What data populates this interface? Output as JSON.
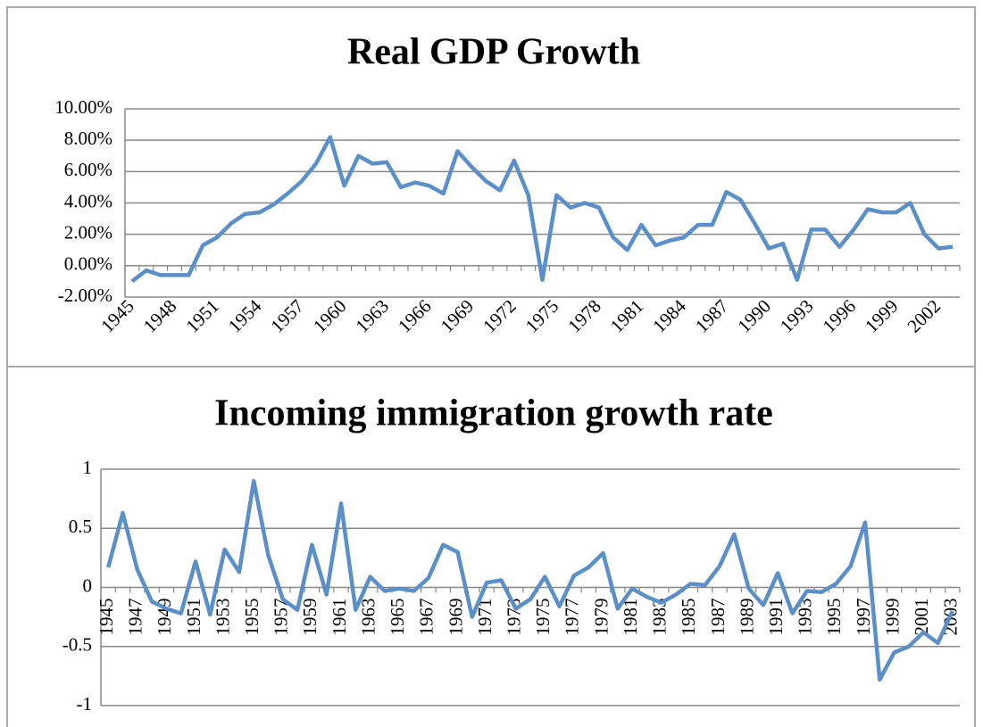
{
  "chart_data": [
    {
      "type": "line",
      "title": "Real GDP Growth",
      "color": "#5b8fc9",
      "categories": [
        "1945",
        null,
        null,
        "1948",
        null,
        null,
        "1951",
        null,
        null,
        "1954",
        null,
        null,
        "1957",
        null,
        null,
        "1960",
        null,
        null,
        "1963",
        null,
        null,
        "1966",
        null,
        null,
        "1969",
        null,
        null,
        "1972",
        null,
        null,
        "1975",
        null,
        null,
        "1978",
        null,
        null,
        "1981",
        null,
        null,
        "1984",
        null,
        null,
        "1987",
        null,
        null,
        "1990",
        null,
        null,
        "1993",
        null,
        null,
        "1996",
        null,
        null,
        "1999",
        null,
        null,
        "2002",
        null
      ],
      "values": [
        -1.0,
        -0.3,
        -0.6,
        -0.6,
        -0.6,
        1.3,
        1.8,
        2.7,
        3.3,
        3.4,
        3.9,
        4.6,
        5.4,
        6.5,
        8.2,
        5.1,
        7.0,
        6.5,
        6.6,
        5.0,
        5.3,
        5.1,
        4.6,
        7.3,
        6.3,
        5.4,
        4.8,
        6.7,
        4.5,
        -0.9,
        4.5,
        3.7,
        4.0,
        3.7,
        1.8,
        1.0,
        2.6,
        1.3,
        1.6,
        1.8,
        2.6,
        2.6,
        4.7,
        4.2,
        2.7,
        1.1,
        1.4,
        -0.9,
        2.3,
        2.3,
        1.2,
        2.3,
        3.6,
        3.4,
        3.4,
        4.0,
        2.0,
        1.1,
        1.2
      ],
      "ylim": [
        -2,
        10
      ],
      "yticks": [
        {
          "value": -2,
          "label": "-2.00%"
        },
        {
          "value": 0,
          "label": "0.00%"
        },
        {
          "value": 2,
          "label": "2.00%"
        },
        {
          "value": 4,
          "label": "4.00%"
        },
        {
          "value": 6,
          "label": "6.00%"
        },
        {
          "value": 8,
          "label": "8.00%"
        },
        {
          "value": 10,
          "label": "10.00%"
        }
      ],
      "grid": true
    },
    {
      "type": "line",
      "title": "Incoming immigration growth rate",
      "color": "#5b8fc9",
      "categories": [
        "1945",
        null,
        "1947",
        null,
        "1949",
        null,
        "1951",
        null,
        "1953",
        null,
        "1955",
        null,
        "1957",
        null,
        "1959",
        null,
        "1961",
        null,
        "1963",
        null,
        "1965",
        null,
        "1967",
        null,
        "1969",
        null,
        "1971",
        null,
        "1973",
        null,
        "1975",
        null,
        "1977",
        null,
        "1979",
        null,
        "1981",
        null,
        "1983",
        null,
        "1985",
        null,
        "1987",
        null,
        "1989",
        null,
        "1991",
        null,
        "1993",
        null,
        "1995",
        null,
        "1997",
        null,
        "1999",
        null,
        "2001",
        null,
        "2003"
      ],
      "values": [
        0.17,
        0.63,
        0.15,
        -0.12,
        -0.18,
        -0.22,
        0.22,
        -0.23,
        0.32,
        0.13,
        0.9,
        0.27,
        -0.1,
        -0.19,
        0.36,
        -0.06,
        0.71,
        -0.19,
        0.09,
        -0.03,
        -0.01,
        -0.03,
        0.08,
        0.36,
        0.3,
        -0.25,
        0.04,
        0.06,
        -0.18,
        -0.1,
        0.09,
        -0.16,
        0.1,
        0.17,
        0.29,
        -0.18,
        -0.01,
        -0.08,
        -0.13,
        -0.06,
        0.03,
        0.02,
        0.18,
        0.45,
        -0.01,
        -0.15,
        0.12,
        -0.22,
        -0.03,
        -0.04,
        0.03,
        0.18,
        0.55,
        -0.78,
        -0.55,
        -0.5,
        -0.38,
        -0.47,
        -0.2
      ],
      "ylim": [
        -1,
        1
      ],
      "yticks": [
        -1,
        -0.5,
        0,
        0.5,
        1
      ],
      "grid": true
    }
  ]
}
